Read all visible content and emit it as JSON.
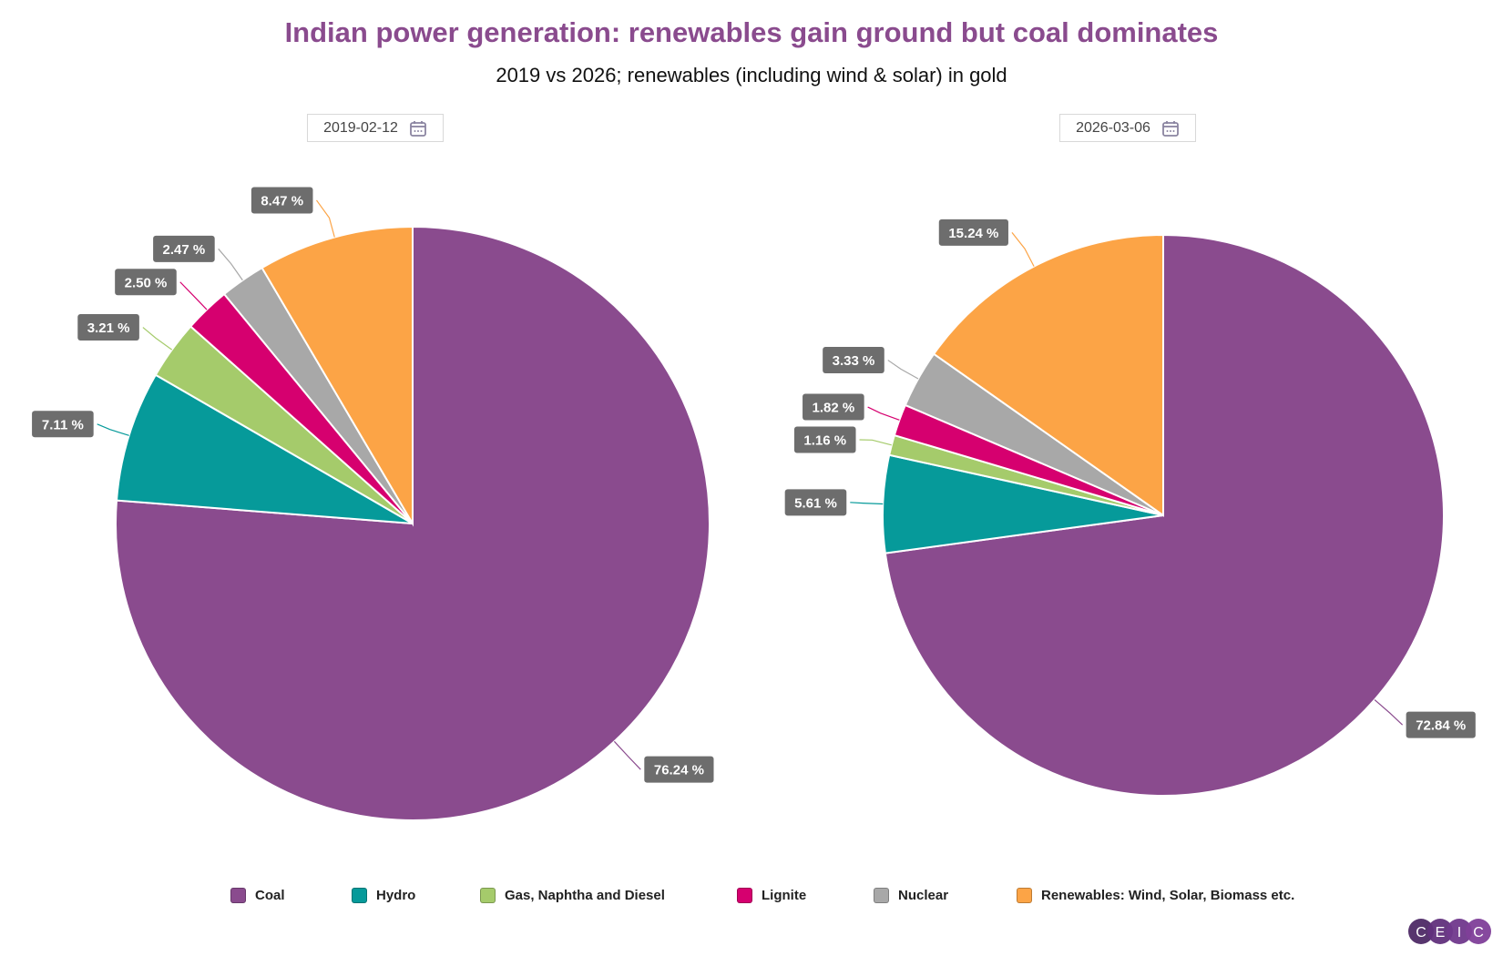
{
  "chart_data": [
    {
      "type": "pie",
      "title": "Indian power generation: renewables gain ground but coal dominates",
      "subtitle": "2019 vs 2026; renewables (including wind & solar) in gold",
      "date": "2019-02-12",
      "categories": [
        "Coal",
        "Hydro",
        "Gas, Naphtha and Diesel",
        "Lignite",
        "Nuclear",
        "Renewables: Wind, Solar, Biomass etc."
      ],
      "values": [
        76.24,
        7.11,
        3.21,
        2.5,
        2.47,
        8.47
      ],
      "labels": [
        "76.24 %",
        "7.11 %",
        "3.21 %",
        "2.50 %",
        "2.47 %",
        "8.47 %"
      ]
    },
    {
      "type": "pie",
      "date": "2026-03-06",
      "categories": [
        "Coal",
        "Hydro",
        "Gas, Naphtha and Diesel",
        "Lignite",
        "Nuclear",
        "Renewables: Wind, Solar, Biomass etc."
      ],
      "values": [
        72.84,
        5.61,
        1.16,
        1.82,
        3.33,
        15.24
      ],
      "labels": [
        "72.84 %",
        "5.61 %",
        "1.16 %",
        "1.82 %",
        "3.33 %",
        "15.24 %"
      ]
    }
  ],
  "title": "Indian power generation: renewables gain ground but coal dominates",
  "subtitle": "2019 vs 2026; renewables (including wind & solar) in gold",
  "dates": [
    "2019-02-12",
    "2026-03-06"
  ],
  "calendar_icon": "calendar-icon",
  "legend": [
    {
      "label": "Coal",
      "color": "#8a4b8e"
    },
    {
      "label": "Hydro",
      "color": "#069a9a"
    },
    {
      "label": "Gas, Naphtha and Diesel",
      "color": "#a5cb6b"
    },
    {
      "label": "Lignite",
      "color": "#d6006f"
    },
    {
      "label": "Nuclear",
      "color": "#a8a8a8"
    },
    {
      "label": "Renewables: Wind, Solar, Biomass etc.",
      "color": "#fca446"
    }
  ],
  "label_box_color": "#6d6d6d",
  "logo": {
    "text": [
      "C",
      "E",
      "I",
      "C"
    ],
    "colors": [
      "#4e2a66",
      "#61307c",
      "#70388c",
      "#7f3f99"
    ]
  }
}
